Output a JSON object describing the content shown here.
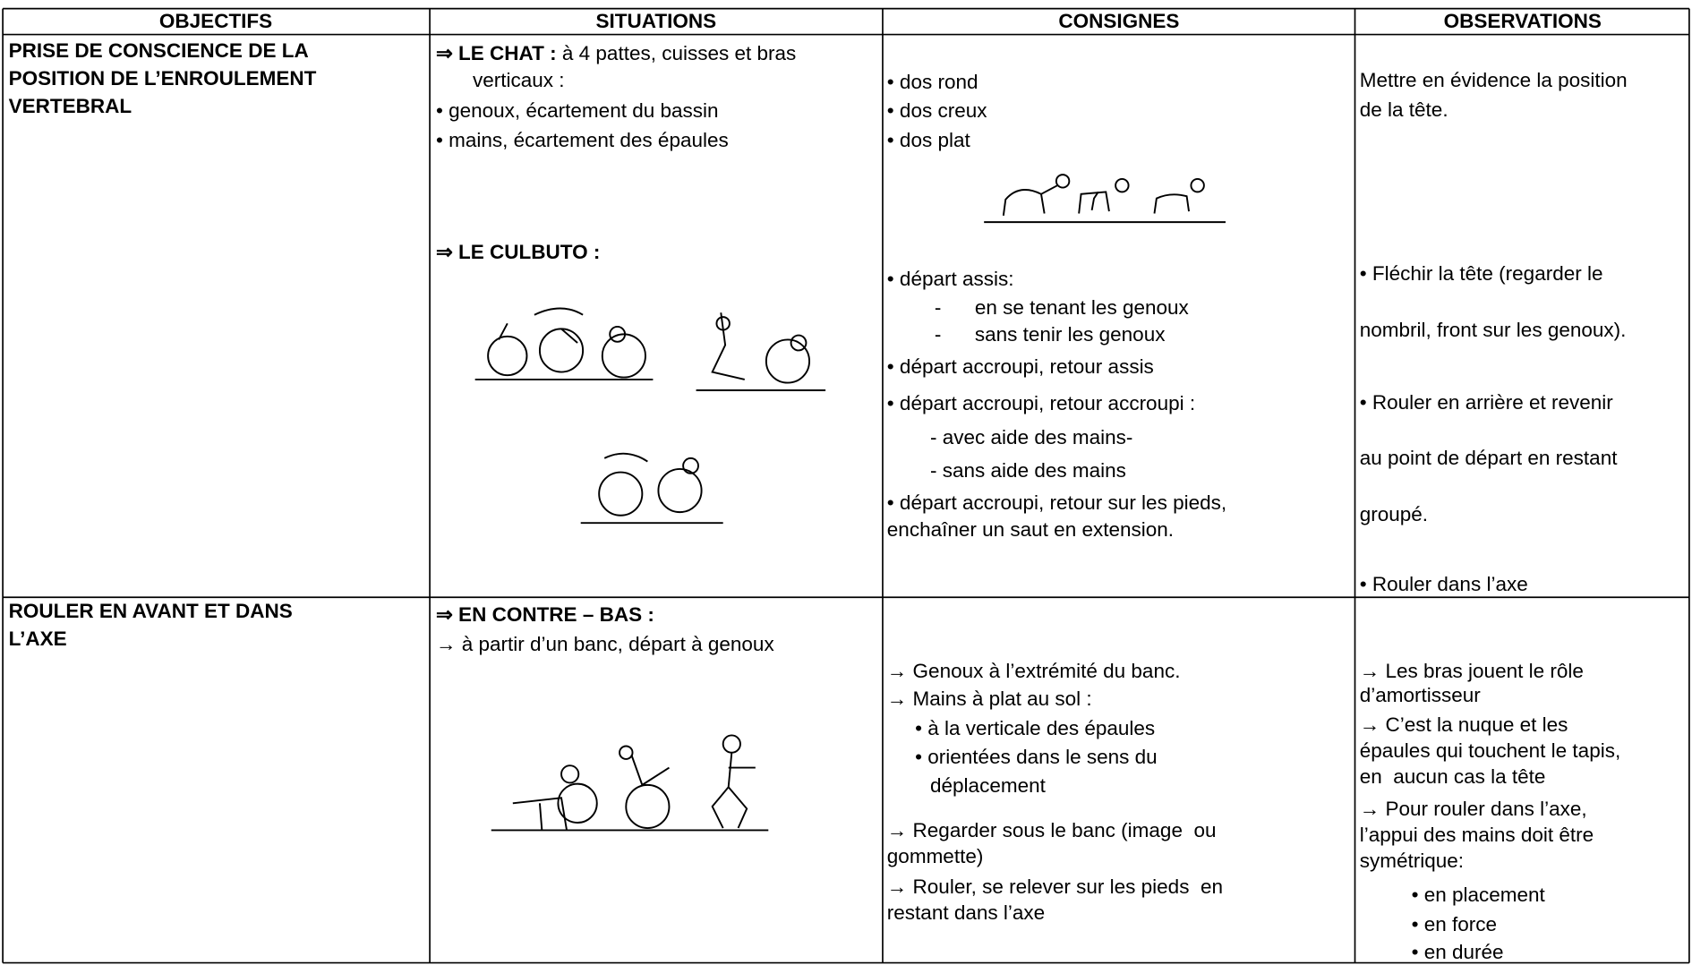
{
  "table": {
    "header": [
      "OBJECTIFS",
      "SITUATIONS",
      "CONSIGNES",
      "OBSERVATIONS"
    ],
    "rows": [
      [
        [
          {
            "bold": "PRISE DE CONSCIENCE DE LA"
          },
          {
            "bold": "POSITION DE L’ENROULEMENT"
          },
          {
            "bold": "VERTEBRAL"
          }
        ],
        [
          {
            "bold": "⇒ LE CHAT :",
            "text": "à 4 pattes, cuisses et bras"
          },
          {
            "text": "verticaux :"
          },
          {
            "text": "• genoux, écartement du bassin"
          },
          {
            "text": "• mains, écartement des épaules"
          },
          {
            "bold": "⇒ LE CULBUTO :"
          }
        ],
        [
          {
            "text": "• dos rond"
          },
          {
            "text": "• dos creux"
          },
          {
            "text": "• dos plat"
          },
          {
            "text": "• départ assis:"
          },
          {
            "text": "-      en se tenant les genoux"
          },
          {
            "text": "-      sans tenir les genoux"
          },
          {
            "text": "• départ accroupi, retour assis"
          },
          {
            "text": "• départ accroupi, retour accroupi :"
          },
          {
            "text": "- avec aide des mains-"
          },
          {
            "text": "- sans aide des mains"
          },
          {
            "text": "• départ accroupi, retour sur les pieds,"
          },
          {
            "text": "enchaîner un saut en extension."
          }
        ],
        [
          {
            "text": "Mettre en évidence la position"
          },
          {
            "text": "de la tête."
          },
          {
            "text": "• Fléchir la tête (regarder le"
          },
          {
            "text": "nombril, front sur les genoux)."
          },
          {
            "text": "• Rouler en arrière et revenir"
          },
          {
            "text": "au point de départ en restant"
          },
          {
            "text": "groupé."
          },
          {
            "text": "• Rouler dans l’axe"
          }
        ]
      ],
      [
        [
          {
            "bold": "ROULER EN AVANT ET DANS"
          },
          {
            "bold": "L’AXE"
          }
        ],
        [
          {
            "bold": "⇒ EN CONTRE – BAS :"
          },
          {
            "text": "→ à partir d’un banc, départ à genoux"
          }
        ],
        [
          {
            "text": "→ Genoux à l’extrémité du banc."
          },
          {
            "text": "→ Mains à plat au sol :"
          },
          {
            "text": "• à la verticale des épaules"
          },
          {
            "text": "• orientées dans le sens du"
          },
          {
            "text": "déplacement"
          },
          {
            "text": "→ Regarder sous le banc (image  ou"
          },
          {
            "text": "gommette)"
          },
          {
            "text": "→ Rouler, se relever sur les pieds  en"
          },
          {
            "text": "restant dans l’axe"
          }
        ],
        [
          {
            "text": "→ Les bras jouent le rôle"
          },
          {
            "text": "d’amortisseur"
          },
          {
            "text": "→ C’est la nuque et les"
          },
          {
            "text": "épaules qui touchent le tapis,"
          },
          {
            "text": "en  aucun cas la tête"
          },
          {
            "text": "→ Pour rouler dans l’axe,"
          },
          {
            "text": "l’appui des mains doit être"
          },
          {
            "text": "symétrique:"
          },
          {
            "text": "• en placement"
          },
          {
            "text": "• en force"
          },
          {
            "text": "• en durée"
          }
        ]
      ]
    ]
  }
}
